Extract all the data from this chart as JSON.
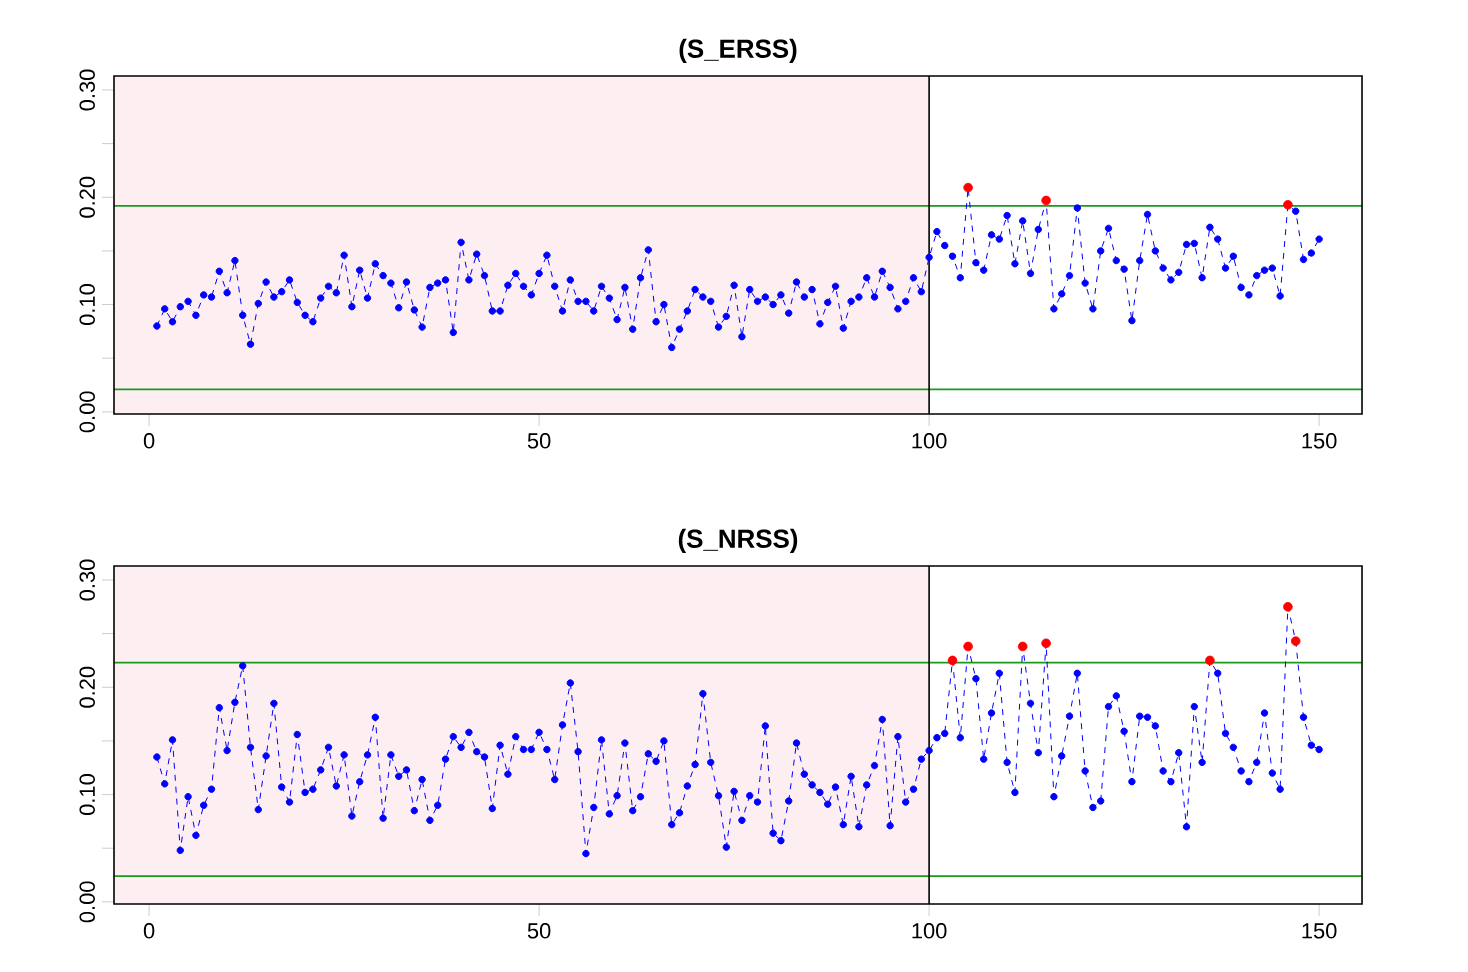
{
  "chart_data": [
    {
      "type": "line",
      "title": "(S_ERSS)",
      "marker": "circle",
      "line_style": "dashed",
      "grid": false,
      "xlim": [
        -4.5,
        155.5
      ],
      "ylim": [
        -0.002,
        0.313
      ],
      "xticks": [
        0,
        50,
        100,
        150
      ],
      "yticks": [
        {
          "value": 0,
          "label": "0.00"
        },
        {
          "value": 0.05,
          "label": null
        },
        {
          "value": 0.1,
          "label": "0.10"
        },
        {
          "value": 0.15,
          "label": null
        },
        {
          "value": 0.2,
          "label": "0.20"
        },
        {
          "value": 0.25,
          "label": null
        },
        {
          "value": 0.3,
          "label": "0.30"
        }
      ],
      "x": [
        1,
        2,
        3,
        4,
        5,
        6,
        7,
        8,
        9,
        10,
        11,
        12,
        13,
        14,
        15,
        16,
        17,
        18,
        19,
        20,
        21,
        22,
        23,
        24,
        25,
        26,
        27,
        28,
        29,
        30,
        31,
        32,
        33,
        34,
        35,
        36,
        37,
        38,
        39,
        40,
        41,
        42,
        43,
        44,
        45,
        46,
        47,
        48,
        49,
        50,
        51,
        52,
        53,
        54,
        55,
        56,
        57,
        58,
        59,
        60,
        61,
        62,
        63,
        64,
        65,
        66,
        67,
        68,
        69,
        70,
        71,
        72,
        73,
        74,
        75,
        76,
        77,
        78,
        79,
        80,
        81,
        82,
        83,
        84,
        85,
        86,
        87,
        88,
        89,
        90,
        91,
        92,
        93,
        94,
        95,
        96,
        97,
        98,
        99,
        100,
        101,
        102,
        103,
        104,
        105,
        106,
        107,
        108,
        109,
        110,
        111,
        112,
        113,
        114,
        115,
        116,
        117,
        118,
        119,
        120,
        121,
        122,
        123,
        124,
        125,
        126,
        127,
        128,
        129,
        130,
        131,
        132,
        133,
        134,
        135,
        136,
        137,
        138,
        139,
        140,
        141,
        142,
        143,
        144,
        145,
        146,
        147,
        148,
        149,
        150
      ],
      "series": [
        {
          "color": "#0000ff",
          "values": [
            0.08,
            0.096,
            0.084,
            0.098,
            0.103,
            0.09,
            0.109,
            0.107,
            0.131,
            0.111,
            0.141,
            0.09,
            0.063,
            0.101,
            0.121,
            0.107,
            0.112,
            0.123,
            0.102,
            0.09,
            0.084,
            0.106,
            0.117,
            0.111,
            0.146,
            0.098,
            0.132,
            0.106,
            0.138,
            0.127,
            0.12,
            0.097,
            0.121,
            0.095,
            0.079,
            0.116,
            0.12,
            0.123,
            0.074,
            0.158,
            0.123,
            0.147,
            0.127,
            0.094,
            0.094,
            0.118,
            0.129,
            0.117,
            0.109,
            0.129,
            0.146,
            0.117,
            0.094,
            0.123,
            0.103,
            0.103,
            0.094,
            0.117,
            0.106,
            0.086,
            0.116,
            0.077,
            0.125,
            0.151,
            0.084,
            0.1,
            0.06,
            0.077,
            0.094,
            0.114,
            0.107,
            0.103,
            0.079,
            0.089,
            0.118,
            0.07,
            0.114,
            0.103,
            0.107,
            0.1,
            0.109,
            0.092,
            0.121,
            0.107,
            0.114,
            0.082,
            0.102,
            0.117,
            0.078,
            0.103,
            0.107,
            0.125,
            0.107,
            0.131,
            0.116,
            0.096,
            0.103,
            0.125,
            0.112,
            0.144,
            0.168,
            0.155,
            0.145,
            0.125,
            0.209,
            0.139,
            0.132,
            0.165,
            0.161,
            0.183,
            0.138,
            0.178,
            0.129,
            0.17,
            0.197,
            0.096,
            0.11,
            0.127,
            0.19,
            0.12,
            0.096,
            0.15,
            0.171,
            0.141,
            0.133,
            0.085,
            0.141,
            0.184,
            0.15,
            0.134,
            0.123,
            0.13,
            0.156,
            0.157,
            0.125,
            0.172,
            0.161,
            0.134,
            0.145,
            0.116,
            0.109,
            0.127,
            0.132,
            0.134,
            0.108,
            0.193,
            0.187,
            0.142,
            0.148,
            0.161
          ]
        },
        {
          "type": "scatter",
          "color": "#ff0000",
          "x": [
            105,
            115,
            146
          ],
          "values": [
            0.209,
            0.197,
            0.193
          ]
        }
      ],
      "ref_lines": [
        {
          "axis": "y",
          "value": 0.192,
          "color": "#1a9a1a",
          "line_style": "solid"
        },
        {
          "axis": "y",
          "value": 0.021,
          "color": "#1a9a1a",
          "line_style": "solid"
        },
        {
          "axis": "x",
          "value": 100,
          "color": "#000000",
          "line_style": "solid"
        }
      ],
      "bands": [
        {
          "axis": "x",
          "from": -4.5,
          "to": 100,
          "color": "#fdeef2"
        }
      ]
    },
    {
      "type": "line",
      "title": "(S_NRSS)",
      "marker": "circle",
      "line_style": "dashed",
      "grid": false,
      "xlim": [
        -4.5,
        155.5
      ],
      "ylim": [
        -0.002,
        0.313
      ],
      "xticks": [
        0,
        50,
        100,
        150
      ],
      "yticks": [
        {
          "value": 0,
          "label": "0.00"
        },
        {
          "value": 0.05,
          "label": null
        },
        {
          "value": 0.1,
          "label": "0.10"
        },
        {
          "value": 0.15,
          "label": null
        },
        {
          "value": 0.2,
          "label": "0.20"
        },
        {
          "value": 0.25,
          "label": null
        },
        {
          "value": 0.3,
          "label": "0.30"
        }
      ],
      "x": [
        1,
        2,
        3,
        4,
        5,
        6,
        7,
        8,
        9,
        10,
        11,
        12,
        13,
        14,
        15,
        16,
        17,
        18,
        19,
        20,
        21,
        22,
        23,
        24,
        25,
        26,
        27,
        28,
        29,
        30,
        31,
        32,
        33,
        34,
        35,
        36,
        37,
        38,
        39,
        40,
        41,
        42,
        43,
        44,
        45,
        46,
        47,
        48,
        49,
        50,
        51,
        52,
        53,
        54,
        55,
        56,
        57,
        58,
        59,
        60,
        61,
        62,
        63,
        64,
        65,
        66,
        67,
        68,
        69,
        70,
        71,
        72,
        73,
        74,
        75,
        76,
        77,
        78,
        79,
        80,
        81,
        82,
        83,
        84,
        85,
        86,
        87,
        88,
        89,
        90,
        91,
        92,
        93,
        94,
        95,
        96,
        97,
        98,
        99,
        100,
        101,
        102,
        103,
        104,
        105,
        106,
        107,
        108,
        109,
        110,
        111,
        112,
        113,
        114,
        115,
        116,
        117,
        118,
        119,
        120,
        121,
        122,
        123,
        124,
        125,
        126,
        127,
        128,
        129,
        130,
        131,
        132,
        133,
        134,
        135,
        136,
        137,
        138,
        139,
        140,
        141,
        142,
        143,
        144,
        145,
        146,
        147,
        148,
        149,
        150
      ],
      "series": [
        {
          "color": "#0000ff",
          "values": [
            0.135,
            0.11,
            0.151,
            0.048,
            0.098,
            0.062,
            0.09,
            0.105,
            0.181,
            0.141,
            0.186,
            0.22,
            0.144,
            0.086,
            0.136,
            0.185,
            0.107,
            0.093,
            0.156,
            0.102,
            0.105,
            0.123,
            0.144,
            0.108,
            0.137,
            0.08,
            0.112,
            0.137,
            0.172,
            0.078,
            0.137,
            0.117,
            0.123,
            0.085,
            0.114,
            0.076,
            0.09,
            0.133,
            0.154,
            0.144,
            0.158,
            0.14,
            0.135,
            0.087,
            0.146,
            0.119,
            0.154,
            0.142,
            0.142,
            0.158,
            0.142,
            0.114,
            0.165,
            0.204,
            0.14,
            0.045,
            0.088,
            0.151,
            0.082,
            0.099,
            0.148,
            0.085,
            0.098,
            0.138,
            0.131,
            0.15,
            0.072,
            0.083,
            0.108,
            0.128,
            0.194,
            0.13,
            0.099,
            0.051,
            0.103,
            0.076,
            0.099,
            0.093,
            0.164,
            0.064,
            0.057,
            0.094,
            0.148,
            0.119,
            0.109,
            0.102,
            0.091,
            0.107,
            0.072,
            0.117,
            0.07,
            0.109,
            0.127,
            0.17,
            0.071,
            0.154,
            0.093,
            0.105,
            0.133,
            0.141,
            0.153,
            0.157,
            0.225,
            0.153,
            0.238,
            0.208,
            0.133,
            0.176,
            0.213,
            0.13,
            0.102,
            0.238,
            0.185,
            0.139,
            0.241,
            0.098,
            0.136,
            0.173,
            0.213,
            0.122,
            0.088,
            0.094,
            0.182,
            0.192,
            0.159,
            0.112,
            0.173,
            0.172,
            0.164,
            0.122,
            0.112,
            0.139,
            0.07,
            0.182,
            0.13,
            0.225,
            0.213,
            0.157,
            0.144,
            0.122,
            0.112,
            0.13,
            0.176,
            0.12,
            0.105,
            0.275,
            0.243,
            0.172,
            0.146,
            0.142
          ]
        },
        {
          "type": "scatter",
          "color": "#ff0000",
          "x": [
            103,
            105,
            112,
            115,
            136,
            146,
            147
          ],
          "values": [
            0.225,
            0.238,
            0.238,
            0.241,
            0.225,
            0.275,
            0.243
          ]
        }
      ],
      "ref_lines": [
        {
          "axis": "y",
          "value": 0.223,
          "color": "#1a9a1a",
          "line_style": "solid"
        },
        {
          "axis": "y",
          "value": 0.024,
          "color": "#1a9a1a",
          "line_style": "solid"
        },
        {
          "axis": "x",
          "value": 100,
          "color": "#000000",
          "line_style": "solid"
        }
      ],
      "bands": [
        {
          "axis": "x",
          "from": -4.5,
          "to": 100,
          "color": "#fdeef2"
        }
      ]
    }
  ]
}
